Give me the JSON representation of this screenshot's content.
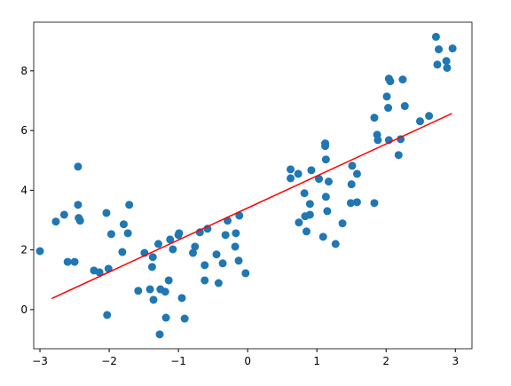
{
  "chart_data": {
    "type": "scatter",
    "xlim": [
      -3.09,
      3.24
    ],
    "ylim": [
      -1.31,
      9.63
    ],
    "xticks": [
      {
        "value": -3,
        "label": "−3"
      },
      {
        "value": -2,
        "label": "−2"
      },
      {
        "value": -1,
        "label": "−1"
      },
      0,
      1,
      2,
      3
    ],
    "yticks": [
      0,
      2,
      4,
      6,
      8
    ],
    "series": [
      {
        "kind": "scatter",
        "color": "#1f77b4",
        "x": [
          -3.0,
          -2.77,
          -2.65,
          -2.6,
          -2.5,
          -2.45,
          -2.45,
          -2.44,
          -2.42,
          -2.22,
          -2.14,
          -2.04,
          -2.03,
          -2.01,
          -1.97,
          -1.79,
          -1.81,
          -1.73,
          -1.71,
          -1.58,
          -1.49,
          -1.41,
          -1.38,
          -1.37,
          -1.36,
          -1.29,
          -1.27,
          -1.26,
          -1.19,
          -1.18,
          -1.14,
          -1.12,
          -1.08,
          -1.0,
          -0.99,
          -0.95,
          -0.91,
          -0.79,
          -0.76,
          -0.69,
          -0.62,
          -0.62,
          -0.58,
          -0.45,
          -0.42,
          -0.36,
          -0.32,
          -0.29,
          -0.17,
          -0.18,
          -0.12,
          -0.13,
          -0.03,
          0.62,
          0.62,
          0.73,
          0.74,
          0.82,
          0.83,
          0.85,
          0.9,
          0.9,
          0.92,
          1.03,
          1.09,
          1.12,
          1.12,
          1.13,
          1.13,
          1.15,
          1.17,
          1.27,
          1.37,
          1.49,
          1.5,
          1.51,
          1.58,
          1.58,
          1.83,
          1.83,
          1.87,
          1.88,
          2.01,
          2.03,
          2.04,
          2.06,
          2.04,
          2.18,
          2.21,
          2.24,
          2.27,
          2.49,
          2.62,
          2.72,
          2.76,
          2.74,
          2.87,
          2.88,
          2.96
        ],
        "values": [
          1.96,
          2.95,
          3.18,
          1.6,
          1.6,
          4.79,
          3.51,
          3.07,
          2.98,
          1.31,
          1.25,
          3.24,
          -0.18,
          1.37,
          2.53,
          2.86,
          1.93,
          2.56,
          3.51,
          0.63,
          1.9,
          0.68,
          1.43,
          1.76,
          0.33,
          2.2,
          -0.83,
          0.68,
          0.6,
          -0.27,
          0.98,
          2.35,
          2.02,
          2.5,
          2.56,
          0.39,
          -0.3,
          1.9,
          2.11,
          2.59,
          1.49,
          0.98,
          2.71,
          1.85,
          0.89,
          1.55,
          2.5,
          2.98,
          2.56,
          2.11,
          3.15,
          1.64,
          1.22,
          4.7,
          4.4,
          4.55,
          2.92,
          3.9,
          3.13,
          2.62,
          3.54,
          3.18,
          4.67,
          4.38,
          2.44,
          5.57,
          5.48,
          5.03,
          3.78,
          3.3,
          4.29,
          2.2,
          2.89,
          3.57,
          4.2,
          4.82,
          4.55,
          3.6,
          3.57,
          6.43,
          5.86,
          5.68,
          7.14,
          6.76,
          7.74,
          7.65,
          5.68,
          5.18,
          5.71,
          7.71,
          6.82,
          6.31,
          6.49,
          9.14,
          8.72,
          8.21,
          8.33,
          8.1,
          8.75
        ]
      },
      {
        "kind": "line",
        "color": "#ff0000",
        "x": [
          -2.83,
          2.95
        ],
        "values": [
          0.37,
          6.57
        ]
      }
    ]
  }
}
